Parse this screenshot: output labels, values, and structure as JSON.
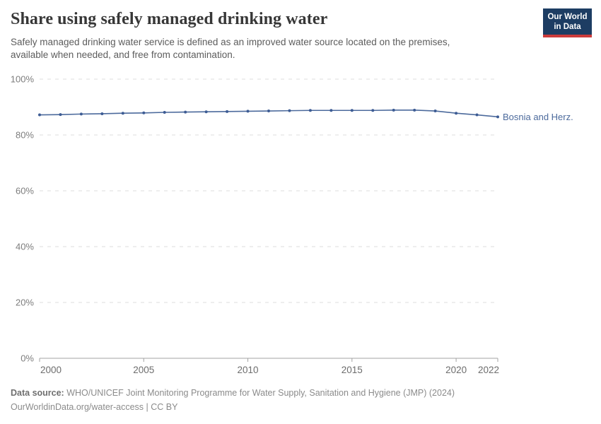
{
  "header": {
    "title": "Share using safely managed drinking water",
    "subtitle": "Safely managed drinking water service is defined as an improved water source located on the premises, available when needed, and free from contamination.",
    "logo": {
      "line1": "Our World",
      "line2": "in Data",
      "bg_color": "#1d3d63",
      "accent_color": "#cc3b3b"
    }
  },
  "chart_data": {
    "type": "line",
    "title": "Share using safely managed drinking water",
    "xlabel": "",
    "ylabel": "",
    "xlim": [
      2000,
      2022
    ],
    "ylim": [
      0,
      100
    ],
    "x_ticks": [
      2000,
      2005,
      2010,
      2015,
      2020,
      2022
    ],
    "y_ticks": [
      0,
      20,
      40,
      60,
      80,
      100
    ],
    "y_tick_suffix": "%",
    "grid": "horizontal-dashed",
    "legend_position": "end-of-line",
    "x": [
      2000,
      2001,
      2002,
      2003,
      2004,
      2005,
      2006,
      2007,
      2008,
      2009,
      2010,
      2011,
      2012,
      2013,
      2014,
      2015,
      2016,
      2017,
      2018,
      2019,
      2020,
      2021,
      2022
    ],
    "series": [
      {
        "name": "Bosnia and Herz.",
        "color": "#4c6a9c",
        "marker_color": "#3d5c94",
        "values": [
          87.2,
          87.3,
          87.5,
          87.6,
          87.8,
          87.9,
          88.1,
          88.2,
          88.3,
          88.4,
          88.5,
          88.6,
          88.7,
          88.8,
          88.8,
          88.8,
          88.8,
          88.9,
          88.9,
          88.6,
          87.8,
          87.2,
          86.5
        ]
      }
    ],
    "colors": {
      "grid": "#dcdcdc",
      "axis": "#a3a3a3",
      "y_tick_label": "#7d7d7d",
      "x_tick_label": "#6d6d6d"
    }
  },
  "footer": {
    "source_label": "Data source:",
    "source_text": "WHO/UNICEF Joint Monitoring Programme for Water Supply, Sanitation and Hygiene (JMP) (2024)",
    "note_text": "OurWorldinData.org/water-access | CC BY"
  }
}
